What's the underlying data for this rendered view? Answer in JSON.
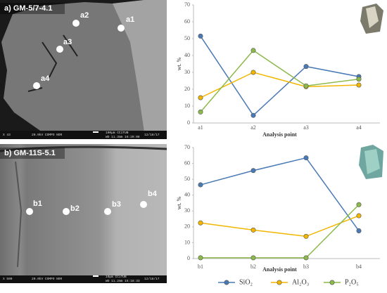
{
  "chart_data": [
    {
      "type": "line",
      "y_label": "wt. %",
      "x_label": "Analysis point",
      "categories": [
        "a1",
        "a2",
        "a3",
        "a4"
      ],
      "series": [
        {
          "color": "#4a7ab5",
          "values": [
            51.5,
            4.5,
            33.5,
            27.5
          ]
        },
        {
          "color": "#f2b600",
          "values": [
            15,
            30,
            21.5,
            22.5
          ]
        },
        {
          "color": "#8cba4a",
          "values": [
            6.5,
            43,
            22,
            26
          ]
        }
      ],
      "ylim": [
        0,
        70
      ],
      "yticks": [
        0,
        10,
        20,
        30,
        40,
        50,
        60,
        70
      ],
      "grid": false
    },
    {
      "type": "line",
      "y_label": "wt. %",
      "x_label": "Analysis point",
      "categories": [
        "b1",
        "b2",
        "b3",
        "b4"
      ],
      "series": [
        {
          "name": "SiO₂",
          "color": "#4a7ab5",
          "values": [
            46.5,
            55.5,
            63.5,
            17.5
          ]
        },
        {
          "name": "Al₂O₃",
          "color": "#f2b600",
          "values": [
            22.5,
            18,
            14,
            27
          ]
        },
        {
          "name": "P₂O₅",
          "color": "#8cba4a",
          "values": [
            0.5,
            0.5,
            0.5,
            34
          ]
        }
      ],
      "ylim": [
        0,
        70
      ],
      "yticks": [
        0,
        10,
        20,
        30,
        40,
        50,
        60,
        70
      ],
      "grid": false,
      "legend": "bottom"
    }
  ],
  "images": [
    {
      "title": "a) GM-5/7-4.1",
      "points": [
        "a1",
        "a2",
        "a3",
        "a4"
      ],
      "footer": [
        "X 43",
        "20.0kV COMPO NOR",
        "100µm CCiTUB",
        "WD 11.3mm 16:29:08",
        "12/18/17"
      ]
    },
    {
      "title": "b) GM-11S-5.1",
      "points": [
        "b1",
        "b2",
        "b3",
        "b4"
      ],
      "footer": [
        "X 500",
        "20.0kV COMPO NOR",
        "10µm CCiTUB",
        "WD 11.2mm 15:18:33",
        "12/18/17"
      ]
    }
  ]
}
